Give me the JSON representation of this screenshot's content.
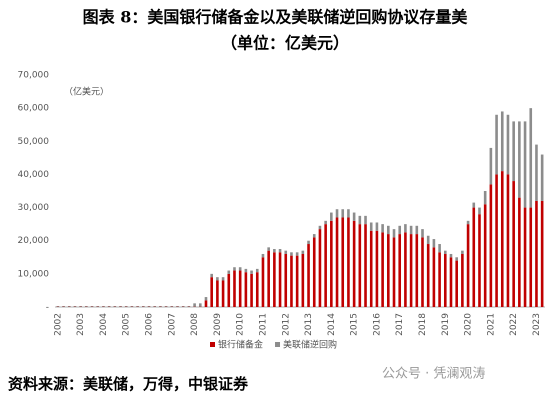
{
  "chart_data": {
    "type": "bar",
    "stacked": true,
    "title": "图表 8：美国银行储备金以及美联储逆回购协议存量美",
    "subtitle": "（单位：亿美元）",
    "y_label": "（亿美元）",
    "source": "资料来源：美联储，万得，中银证券",
    "watermark": "公众号 · 凭澜观涛",
    "categories": [
      "2002",
      null,
      null,
      null,
      "2003",
      null,
      null,
      null,
      "2004",
      null,
      null,
      null,
      "2005",
      null,
      null,
      null,
      "2006",
      null,
      null,
      null,
      "2007",
      null,
      null,
      null,
      "2008",
      null,
      null,
      null,
      "2009",
      null,
      null,
      null,
      "2010",
      null,
      null,
      null,
      "2011",
      null,
      null,
      null,
      "2012",
      null,
      null,
      null,
      "2013",
      null,
      null,
      null,
      "2014",
      null,
      null,
      null,
      "2015",
      null,
      null,
      null,
      "2016",
      null,
      null,
      null,
      "2017",
      null,
      null,
      null,
      "2018",
      null,
      null,
      null,
      "2019",
      null,
      null,
      null,
      "2020",
      null,
      null,
      null,
      "2021",
      null,
      null,
      null,
      "2022",
      null,
      null,
      null,
      "2023",
      null
    ],
    "series": [
      {
        "name": "银行储备金",
        "color": "#c00000",
        "values": [
          100,
          100,
          100,
          100,
          100,
          100,
          100,
          100,
          100,
          100,
          100,
          100,
          100,
          100,
          100,
          100,
          100,
          100,
          100,
          100,
          100,
          100,
          100,
          100,
          100,
          100,
          2000,
          9000,
          8000,
          8000,
          10000,
          11000,
          11000,
          10500,
          10000,
          10500,
          15000,
          17000,
          16500,
          16500,
          16000,
          15500,
          15500,
          16000,
          19000,
          21000,
          23500,
          25000,
          26000,
          27000,
          27000,
          27000,
          26000,
          25000,
          25000,
          23000,
          23000,
          22500,
          22000,
          21000,
          22000,
          22500,
          22000,
          22000,
          21000,
          19000,
          18000,
          16500,
          16000,
          15000,
          14000,
          16000,
          25000,
          30000,
          28000,
          31000,
          37000,
          40000,
          41000,
          40000,
          38000,
          33000,
          30000,
          30000,
          32000,
          32000
        ]
      },
      {
        "name": "美联储逆回购",
        "color": "#8c8c8c",
        "values": [
          200,
          200,
          200,
          200,
          200,
          200,
          200,
          200,
          200,
          200,
          200,
          200,
          200,
          200,
          200,
          200,
          200,
          200,
          200,
          200,
          200,
          200,
          200,
          200,
          1000,
          1000,
          1000,
          1000,
          1000,
          1000,
          1000,
          1000,
          1000,
          1000,
          1000,
          1000,
          1000,
          1000,
          1000,
          1000,
          1000,
          1000,
          1000,
          1000,
          1000,
          1000,
          1000,
          1000,
          2500,
          2500,
          2500,
          2500,
          2500,
          2500,
          2500,
          2500,
          2500,
          2500,
          2500,
          2500,
          2500,
          2500,
          2500,
          2500,
          2500,
          2500,
          2500,
          2500,
          1000,
          1000,
          1000,
          1000,
          1000,
          1500,
          2000,
          4000,
          11000,
          18000,
          18000,
          18000,
          18000,
          23000,
          26000,
          30000,
          17000,
          14000
        ]
      }
    ],
    "ylim": [
      0,
      70000
    ],
    "yticks": [
      {
        "value": 0,
        "label": "-"
      },
      {
        "value": 10000,
        "label": "10,000"
      },
      {
        "value": 20000,
        "label": "20,000"
      },
      {
        "value": 30000,
        "label": "30,000"
      },
      {
        "value": 40000,
        "label": "40,000"
      },
      {
        "value": 50000,
        "label": "50,000"
      },
      {
        "value": 60000,
        "label": "60,000"
      },
      {
        "value": 70000,
        "label": "70,000"
      }
    ],
    "grid": false
  }
}
